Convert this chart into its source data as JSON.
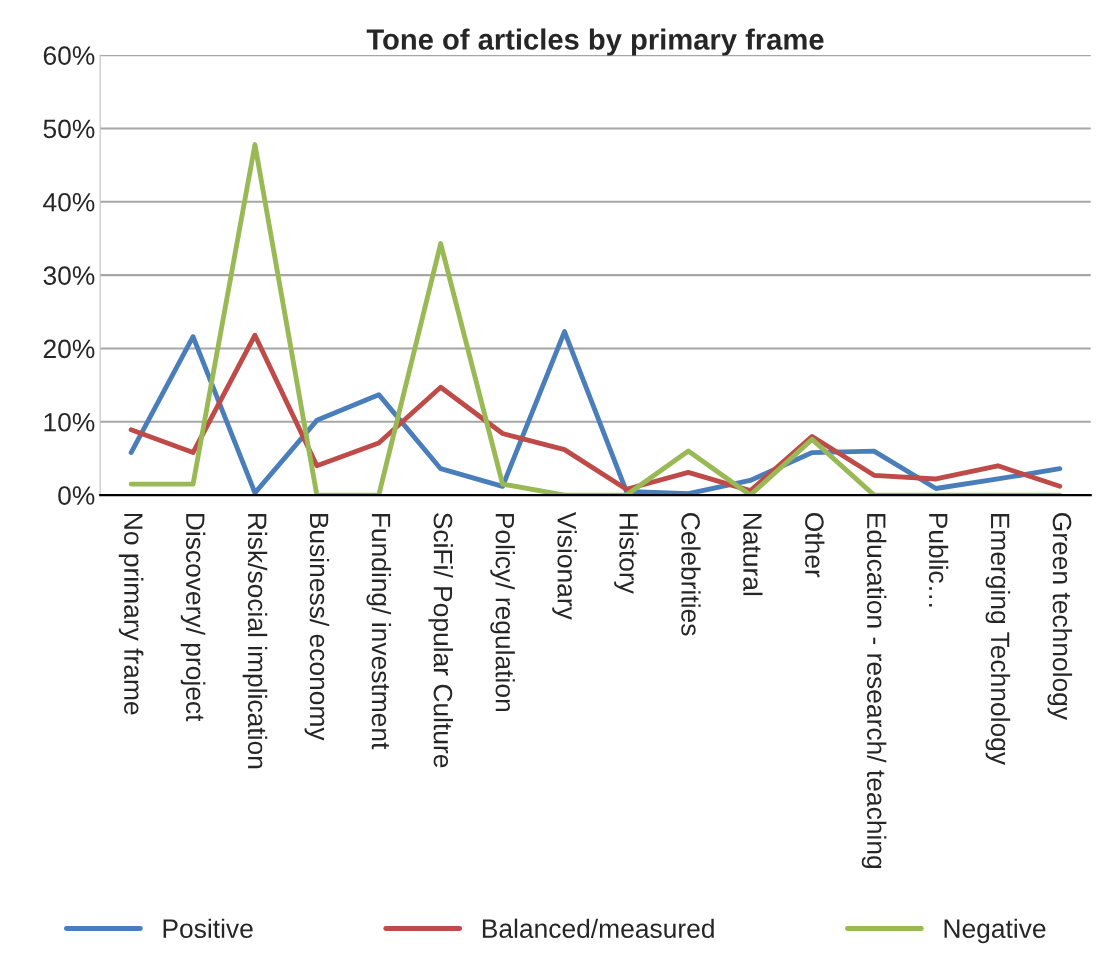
{
  "chart_data": {
    "type": "line",
    "title": "Tone of articles by primary frame",
    "categories": [
      "No primary frame",
      "Discovery/ project",
      "Risk/social implication",
      "Business/ economy",
      "Funding/ investment",
      "SciFi/ Popular Culture",
      "Policy/ regulation",
      "Visionary",
      "History",
      "Celebrities",
      "Natural",
      "Other",
      "Education - research/ teaching",
      "Public…",
      "Emerging Technology",
      "Green technology"
    ],
    "series": [
      {
        "name": "Positive",
        "color": "#4a7ebb",
        "values": [
          5.8,
          21.6,
          0.3,
          10.2,
          13.7,
          3.6,
          1.2,
          22.3,
          0.5,
          0.2,
          2.0,
          5.8,
          6.0,
          0.9,
          2.2,
          3.6
        ]
      },
      {
        "name": "Balanced/measured",
        "color": "#be4b48",
        "values": [
          8.9,
          5.8,
          21.8,
          4.0,
          7.1,
          14.7,
          8.4,
          6.2,
          0.8,
          3.1,
          0.6,
          8.0,
          2.7,
          2.2,
          4.0,
          1.2
        ]
      },
      {
        "name": "Negative",
        "color": "#98b954",
        "values": [
          1.5,
          1.5,
          47.8,
          0,
          0,
          34.3,
          1.5,
          0,
          0,
          6.0,
          0,
          7.6,
          0,
          0,
          0,
          0
        ]
      }
    ],
    "ylim": [
      0,
      60
    ],
    "yticks": [
      {
        "value": 0,
        "label": "0%"
      },
      {
        "value": 10,
        "label": "10%"
      },
      {
        "value": 20,
        "label": "20%"
      },
      {
        "value": 30,
        "label": "30%"
      },
      {
        "value": 40,
        "label": "40%"
      },
      {
        "value": 50,
        "label": "50%"
      },
      {
        "value": 60,
        "label": "60%"
      }
    ],
    "grid": "y",
    "legend": "bottom",
    "marker": "none",
    "line_style": "solid"
  }
}
